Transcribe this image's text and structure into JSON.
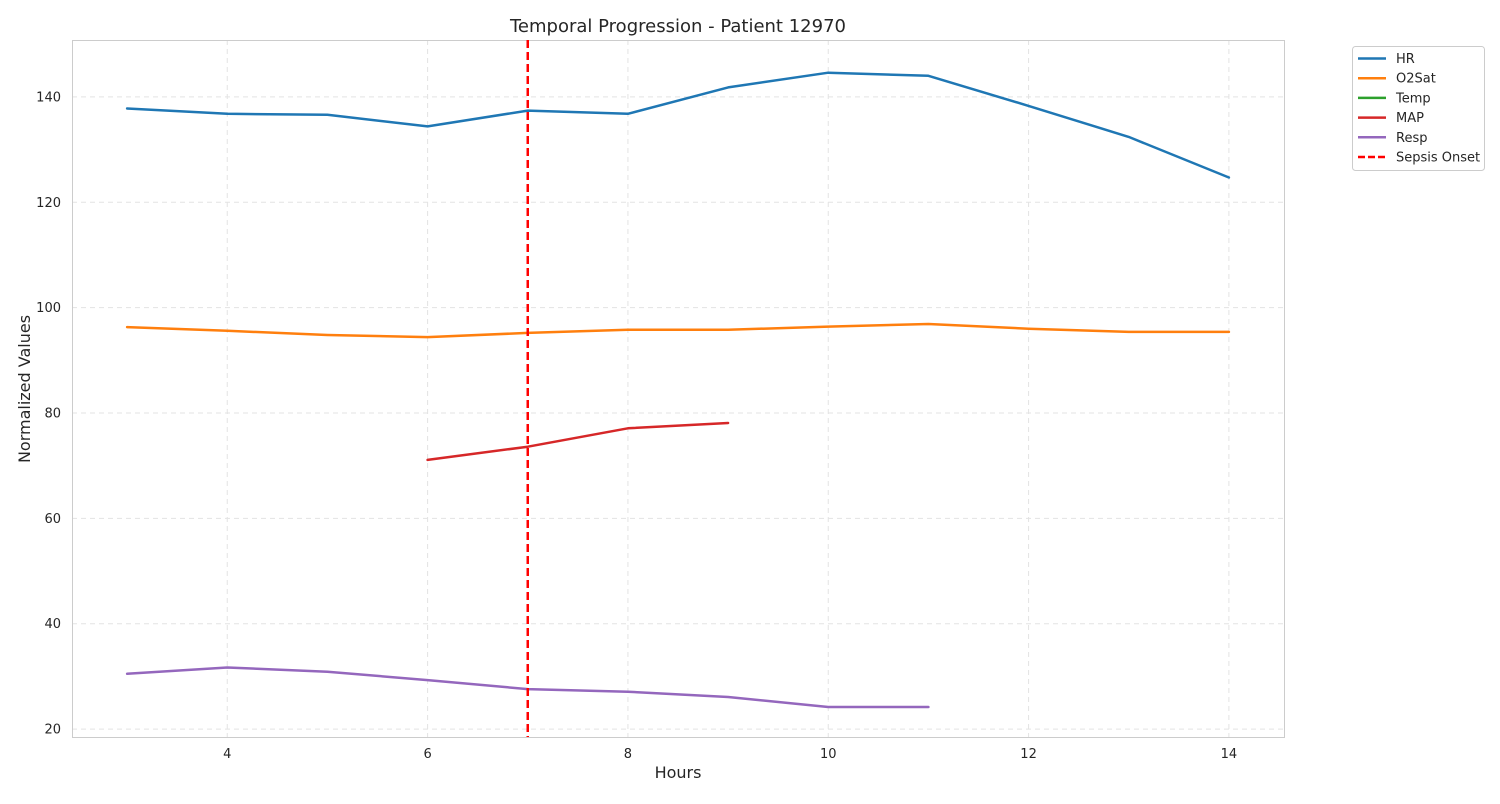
{
  "chart_data": {
    "type": "line",
    "title": "Temporal Progression - Patient 12970",
    "xlabel": "Hours",
    "ylabel": "Normalized Values",
    "xlim": [
      2.45,
      14.55
    ],
    "ylim": [
      18.5,
      150.8
    ],
    "xticks": [
      4,
      6,
      8,
      10,
      12,
      14
    ],
    "yticks": [
      20,
      40,
      60,
      80,
      100,
      120,
      140
    ],
    "grid": true,
    "legend_position": "outside-top-right",
    "series": [
      {
        "name": "HR",
        "color": "#1f77b4",
        "x": [
          3,
          4,
          5,
          6,
          7,
          8,
          9,
          10,
          11,
          12,
          13,
          14
        ],
        "y": [
          137.8,
          136.8,
          136.6,
          134.4,
          137.4,
          136.8,
          141.8,
          144.6,
          144.0,
          138.3,
          132.4,
          124.7
        ]
      },
      {
        "name": "O2Sat",
        "color": "#ff7f0e",
        "x": [
          3,
          4,
          5,
          6,
          7,
          8,
          9,
          10,
          11,
          12,
          13,
          14
        ],
        "y": [
          96.3,
          95.6,
          94.8,
          94.4,
          95.2,
          95.8,
          95.8,
          96.4,
          96.9,
          96.0,
          95.4,
          95.4
        ]
      },
      {
        "name": "Temp",
        "color": "#2ca02c",
        "x": [],
        "y": []
      },
      {
        "name": "MAP",
        "color": "#d62728",
        "x": [
          6,
          7,
          8,
          9
        ],
        "y": [
          71.1,
          73.6,
          77.1,
          78.1
        ]
      },
      {
        "name": "Resp",
        "color": "#9467bd",
        "x": [
          3,
          4,
          5,
          6,
          7,
          8,
          9,
          10,
          11
        ],
        "y": [
          30.5,
          31.7,
          30.9,
          29.3,
          27.6,
          27.1,
          26.1,
          24.2,
          24.2
        ]
      }
    ],
    "markers": [
      {
        "name": "Sepsis Onset",
        "color": "#ff0000",
        "style": "dashed",
        "x": 7
      }
    ]
  }
}
